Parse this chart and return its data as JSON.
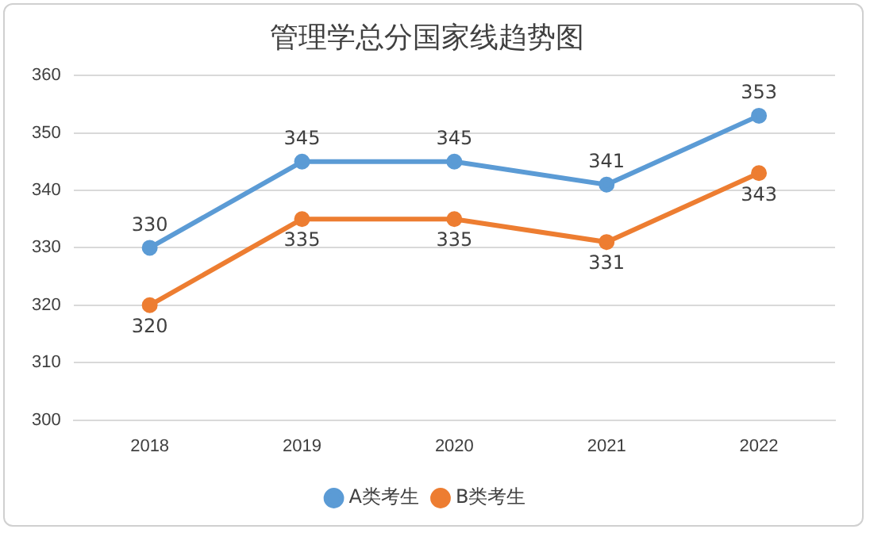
{
  "chart_data": {
    "type": "line",
    "title": "管理学总分国家线趋势图",
    "categories": [
      "2018",
      "2019",
      "2020",
      "2021",
      "2022"
    ],
    "series": [
      {
        "name": "A类考生",
        "color": "#5b9bd5",
        "values": [
          330,
          345,
          345,
          341,
          353
        ]
      },
      {
        "name": "B类考生",
        "color": "#ed7d31",
        "values": [
          320,
          335,
          335,
          331,
          343
        ]
      }
    ],
    "ylim": [
      300,
      360
    ],
    "yticks": [
      300,
      310,
      320,
      330,
      340,
      350,
      360
    ],
    "grid": "y",
    "legend": "bottom",
    "marker": "circle",
    "line_style": "solid",
    "data_labels": true
  }
}
